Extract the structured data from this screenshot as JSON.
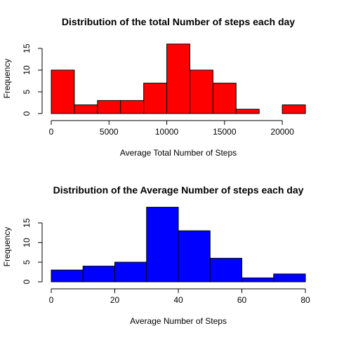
{
  "chart_data": [
    {
      "type": "bar",
      "title": "Distribution of the total Number of steps each day",
      "xlabel": "Average Total Number of Steps",
      "ylabel": "Frequency",
      "bar_color": "#ff0000",
      "bins": [
        {
          "x0": 0,
          "x1": 2000,
          "value": 10
        },
        {
          "x0": 2000,
          "x1": 4000,
          "value": 2
        },
        {
          "x0": 4000,
          "x1": 6000,
          "value": 3
        },
        {
          "x0": 6000,
          "x1": 8000,
          "value": 3
        },
        {
          "x0": 8000,
          "x1": 10000,
          "value": 7
        },
        {
          "x0": 10000,
          "x1": 12000,
          "value": 16
        },
        {
          "x0": 12000,
          "x1": 14000,
          "value": 10
        },
        {
          "x0": 14000,
          "x1": 16000,
          "value": 7
        },
        {
          "x0": 16000,
          "x1": 18000,
          "value": 1
        },
        {
          "x0": 18000,
          "x1": 20000,
          "value": 0
        },
        {
          "x0": 20000,
          "x1": 22000,
          "value": 2
        }
      ],
      "xticks": [
        0,
        5000,
        10000,
        15000,
        20000
      ],
      "yticks": [
        0,
        5,
        10,
        15
      ],
      "xlim": [
        0,
        22000
      ],
      "ylim": [
        0,
        16
      ]
    },
    {
      "type": "bar",
      "title": "Distribution of the Average Number of steps each day",
      "xlabel": "Average Number of Steps",
      "ylabel": "Frequency",
      "bar_color": "#0000ff",
      "bins": [
        {
          "x0": 0,
          "x1": 10,
          "value": 3
        },
        {
          "x0": 10,
          "x1": 20,
          "value": 4
        },
        {
          "x0": 20,
          "x1": 30,
          "value": 5
        },
        {
          "x0": 30,
          "x1": 40,
          "value": 19
        },
        {
          "x0": 40,
          "x1": 50,
          "value": 13
        },
        {
          "x0": 50,
          "x1": 60,
          "value": 6
        },
        {
          "x0": 60,
          "x1": 70,
          "value": 1
        },
        {
          "x0": 70,
          "x1": 80,
          "value": 2
        }
      ],
      "xticks": [
        0,
        20,
        40,
        60,
        80
      ],
      "yticks": [
        0,
        5,
        10,
        15
      ],
      "xlim": [
        0,
        80
      ],
      "ylim": [
        0,
        19
      ]
    }
  ]
}
